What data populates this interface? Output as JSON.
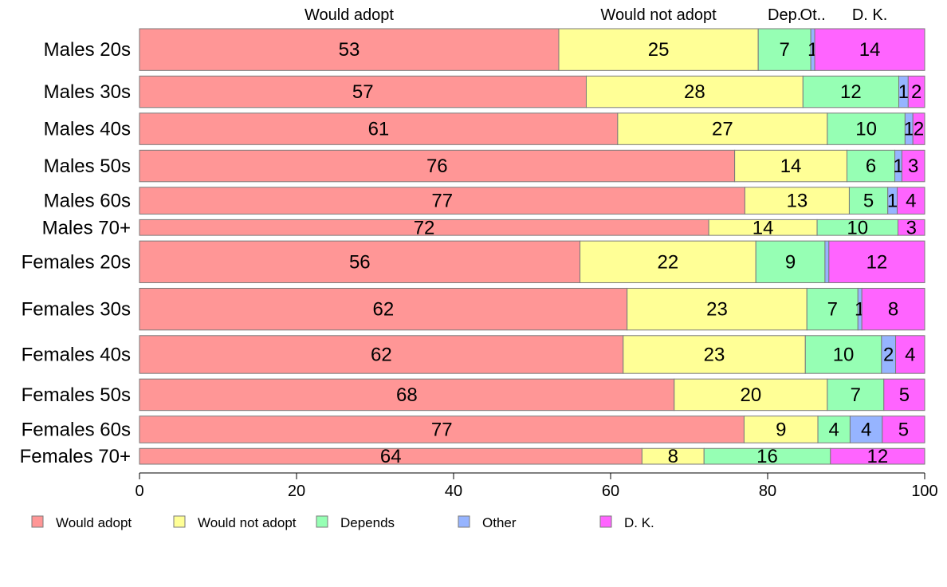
{
  "chart_data": {
    "type": "bar",
    "orientation": "horizontal",
    "stacked": true,
    "xlim": [
      0,
      100
    ],
    "x_ticks": [
      "0",
      "20",
      "40",
      "60",
      "80",
      "100"
    ],
    "legend_position": "bottom",
    "column_labels": [
      "Would adopt",
      "Would not adopt",
      "Dep.",
      "Ot..",
      "D. K."
    ],
    "categories": [
      "Males 20s",
      "Males 30s",
      "Males 40s",
      "Males 50s",
      "Males 60s",
      "Males 70+",
      "Females 20s",
      "Females 30s",
      "Females 40s",
      "Females 50s",
      "Females 60s",
      "Females 70+"
    ],
    "series": [
      {
        "name": "Would adopt",
        "color": "#FF9696",
        "values": [
          53.4,
          56.9,
          60.9,
          75.8,
          77.1,
          72.5,
          56.1,
          62.1,
          61.6,
          68.1,
          77.0,
          64.0
        ],
        "labels": [
          "53",
          "57",
          "61",
          "76",
          "77",
          "72",
          "56",
          "62",
          "62",
          "68",
          "77",
          "64"
        ]
      },
      {
        "name": "Would not adopt",
        "color": "#FFFF96",
        "values": [
          25.4,
          27.6,
          26.7,
          14.3,
          13.3,
          13.8,
          22.4,
          22.9,
          23.2,
          19.5,
          9.4,
          7.9
        ],
        "labels": [
          "25",
          "28",
          "27",
          "14",
          "13",
          "14",
          "22",
          "23",
          "23",
          "20",
          "9",
          "8"
        ]
      },
      {
        "name": "Depends",
        "color": "#96FFB4",
        "values": [
          6.7,
          12.2,
          9.9,
          6.1,
          4.9,
          10.3,
          8.8,
          6.5,
          9.7,
          7.2,
          4.1,
          16.1
        ],
        "labels": [
          "7",
          "12",
          "10",
          "6",
          "5",
          "10",
          "9",
          "7",
          "10",
          "7",
          "4",
          "16"
        ]
      },
      {
        "name": "Other",
        "color": "#96B4FF",
        "values": [
          0.5,
          1.2,
          1.0,
          0.9,
          1.2,
          0,
          0.5,
          0.5,
          1.8,
          0,
          4.1,
          0
        ],
        "labels": [
          "1",
          "1",
          "1",
          "1",
          "1",
          "",
          "",
          "1",
          "2",
          "",
          "4",
          ""
        ]
      },
      {
        "name": "D. K.",
        "color": "#FF64FF",
        "values": [
          14.0,
          2.1,
          1.5,
          2.9,
          3.5,
          3.4,
          12.2,
          8.0,
          3.7,
          5.2,
          5.4,
          12.0
        ],
        "labels": [
          "14",
          "2",
          "2",
          "3",
          "4",
          "3",
          "12",
          "8",
          "4",
          "5",
          "5",
          "12"
        ]
      }
    ],
    "row_weights": [
      53,
      40,
      40,
      40,
      34,
      20,
      53,
      53,
      48,
      40,
      34,
      20
    ]
  }
}
